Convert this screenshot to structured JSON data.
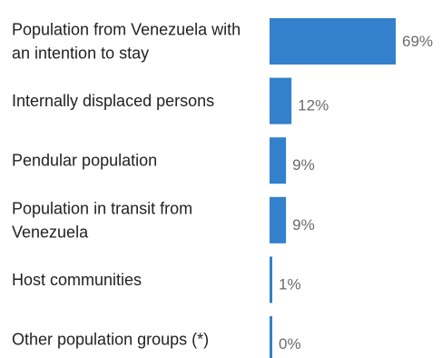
{
  "chart_data": {
    "type": "bar",
    "orientation": "horizontal",
    "categories": [
      "Population from Venezuela with an intention to stay",
      "Internally displaced persons",
      "Pendular population",
      "Population in transit from Venezuela",
      "Host communities",
      "Other population groups (*)"
    ],
    "values": [
      69,
      12,
      9,
      9,
      1,
      0
    ],
    "value_labels": [
      "69%",
      "12%",
      "9%",
      "9%",
      "1%",
      "0%"
    ],
    "value_unit": "%",
    "title": "",
    "xlabel": "",
    "ylabel": "",
    "xlim": [
      0,
      69
    ],
    "grid": false,
    "legend": "none",
    "colors": {
      "bar": "#3380cc",
      "category_text": "#222222",
      "value_text": "#6b6b6b"
    }
  }
}
